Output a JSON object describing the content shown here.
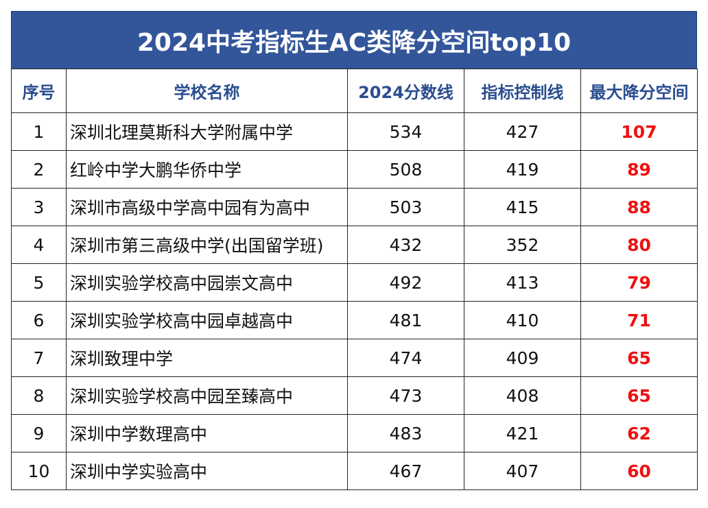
{
  "title": "2024中考指标生AC类降分空间top10",
  "headers": {
    "index": "序号",
    "school": "学校名称",
    "score_2024": "2024分数线",
    "quota_line": "指标控制线",
    "max_drop": "最大降分空间"
  },
  "colors": {
    "title_bg": "#33569b",
    "header_text": "#2a4d8f",
    "highlight": "#ee1111"
  },
  "rows": [
    {
      "index": "1",
      "school": "深圳北理莫斯科大学附属中学",
      "score_2024": "534",
      "quota_line": "427",
      "max_drop": "107"
    },
    {
      "index": "2",
      "school": "红岭中学大鹏华侨中学",
      "score_2024": "508",
      "quota_line": "419",
      "max_drop": "89"
    },
    {
      "index": "3",
      "school": "深圳市高级中学高中园有为高中",
      "score_2024": "503",
      "quota_line": "415",
      "max_drop": "88"
    },
    {
      "index": "4",
      "school": "深圳市第三高级中学(出国留学班)",
      "score_2024": "432",
      "quota_line": "352",
      "max_drop": "80"
    },
    {
      "index": "5",
      "school": "深圳实验学校高中园崇文高中",
      "score_2024": "492",
      "quota_line": "413",
      "max_drop": "79"
    },
    {
      "index": "6",
      "school": "深圳实验学校高中园卓越高中",
      "score_2024": "481",
      "quota_line": "410",
      "max_drop": "71"
    },
    {
      "index": "7",
      "school": "深圳致理中学",
      "score_2024": "474",
      "quota_line": "409",
      "max_drop": "65"
    },
    {
      "index": "8",
      "school": "深圳实验学校高中园至臻高中",
      "score_2024": "473",
      "quota_line": "408",
      "max_drop": "65"
    },
    {
      "index": "9",
      "school": "深圳中学数理高中",
      "score_2024": "483",
      "quota_line": "421",
      "max_drop": "62"
    },
    {
      "index": "10",
      "school": "深圳中学实验高中",
      "score_2024": "467",
      "quota_line": "407",
      "max_drop": "60"
    }
  ]
}
